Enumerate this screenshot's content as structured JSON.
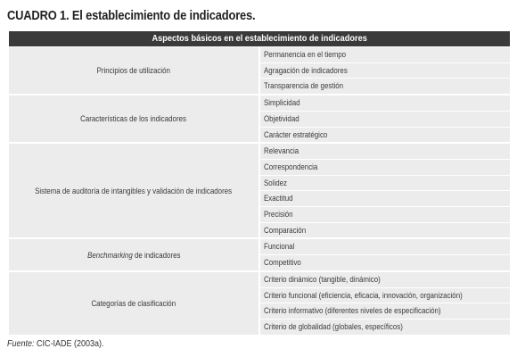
{
  "title": "CUADRO 1. El establecimiento de indicadores.",
  "table": {
    "header": "Aspectos básicos en el establecimiento de indicadores",
    "groups": [
      {
        "label": "Principios de utilización",
        "items": [
          "Permanencia en el tiempo",
          "Agragación de indicadores",
          "Transparencia de gestión"
        ]
      },
      {
        "label": "Características de los indicadores",
        "items": [
          "Simplicidad",
          "Objetividad",
          "Carácter estratégico"
        ]
      },
      {
        "label": "Sistema de auditoría de intangibles y validación de indicadores",
        "items": [
          "Relevancia",
          "Correspondencia",
          "Solidez",
          "Exactitud",
          "Precisión",
          "Comparación"
        ]
      },
      {
        "label_italic": "Benchmarking",
        "label": " de indicadores",
        "items": [
          "Funcional",
          "Competitivo"
        ]
      },
      {
        "label": "Categorías de clasificación",
        "items": [
          "Criterio dinámico (tangible, dinámico)",
          "Criterio funcional (eficiencia, eficacia, innovación, organización)",
          "Criterio informativo (diferentes niveles de especificación)",
          "Criterio de globalidad (globales, específicos)"
        ]
      }
    ]
  },
  "footnote": {
    "label": "Fuente:",
    "text": " CIC-IADE (2003a)."
  }
}
